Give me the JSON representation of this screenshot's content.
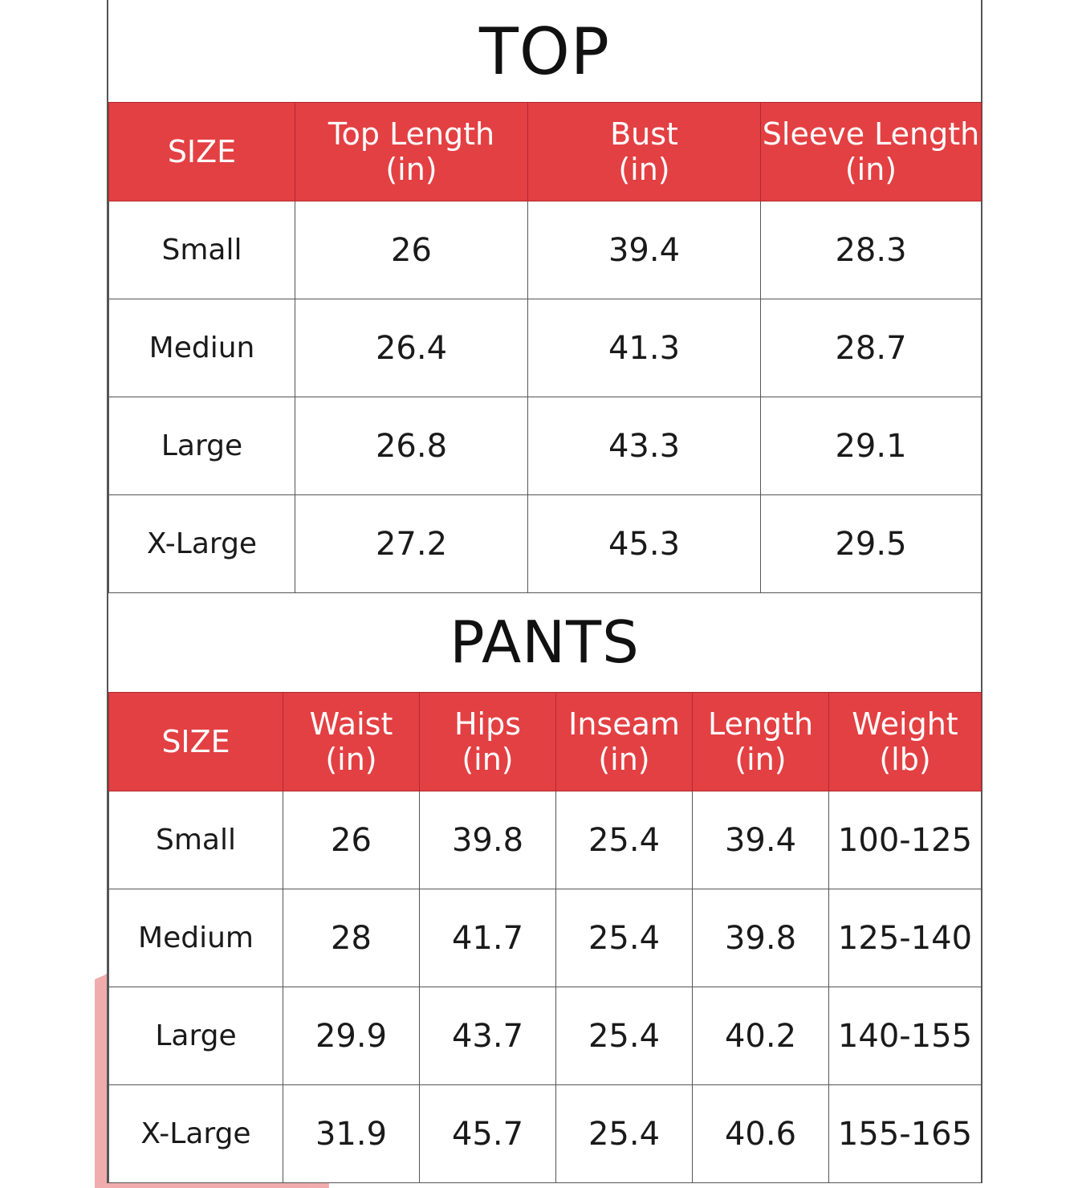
{
  "top": {
    "title": "TOP",
    "columns": [
      {
        "name": "SIZE",
        "unit": ""
      },
      {
        "name": "Top Length",
        "unit": "(in)"
      },
      {
        "name": "Bust",
        "unit": "(in)"
      },
      {
        "name": "Sleeve Length",
        "unit": "(in)"
      }
    ],
    "rows": [
      [
        "Small",
        "26",
        "39.4",
        "28.3"
      ],
      [
        "Mediun",
        "26.4",
        "41.3",
        "28.7"
      ],
      [
        "Large",
        "26.8",
        "43.3",
        "29.1"
      ],
      [
        "X-Large",
        "27.2",
        "45.3",
        "29.5"
      ]
    ]
  },
  "pants": {
    "title": "PANTS",
    "columns": [
      {
        "name": "SIZE",
        "unit": ""
      },
      {
        "name": "Waist",
        "unit": "(in)"
      },
      {
        "name": "Hips",
        "unit": "(in)"
      },
      {
        "name": "Inseam",
        "unit": "(in)"
      },
      {
        "name": "Length",
        "unit": "(in)"
      },
      {
        "name": "Weight",
        "unit": "(lb)"
      }
    ],
    "rows": [
      [
        "Small",
        "26",
        "39.8",
        "25.4",
        "39.4",
        "100-125"
      ],
      [
        "Medium",
        "28",
        "41.7",
        "25.4",
        "39.8",
        "125-140"
      ],
      [
        "Large",
        "29.9",
        "43.7",
        "25.4",
        "40.2",
        "140-155"
      ],
      [
        "X-Large",
        "31.9",
        "45.7",
        "25.4",
        "40.6",
        "155-165"
      ]
    ]
  },
  "colors": {
    "header_red": "#E23C3F",
    "header_text": "#FFFFFF",
    "gold": "#D4A838",
    "tree_green": "#9CCBB0",
    "santa_red": "#E56A6A"
  },
  "decorations": [
    "snowflake-icon",
    "star-icon",
    "ornament-icon",
    "christmas-tree",
    "gift-box",
    "santa-claus"
  ]
}
